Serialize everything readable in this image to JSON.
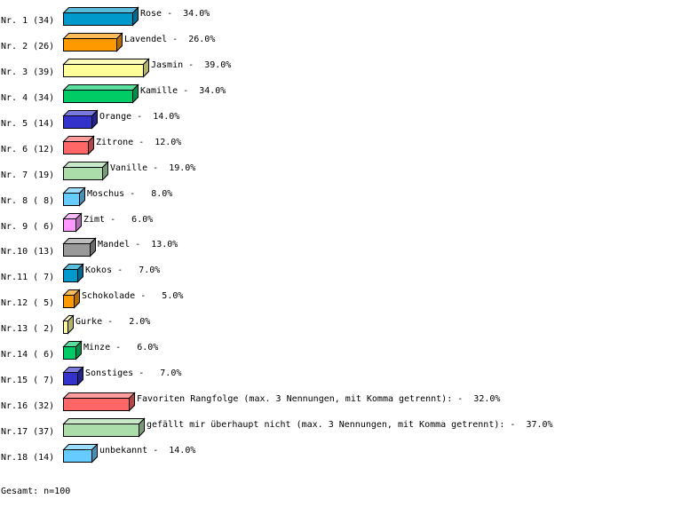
{
  "chart_data": {
    "type": "bar",
    "orientation": "horizontal",
    "style": "3d",
    "grid": false,
    "xlim": [
      0,
      100
    ],
    "rows": [
      {
        "label": "Nr. 1 (34)",
        "name": "Rose",
        "value": 34.0,
        "color": "#0099cc"
      },
      {
        "label": "Nr. 2 (26)",
        "name": "Lavendel",
        "value": 26.0,
        "color": "#ff9900"
      },
      {
        "label": "Nr. 3 (39)",
        "name": "Jasmin",
        "value": 39.0,
        "color": "#ffff99"
      },
      {
        "label": "Nr. 4 (34)",
        "name": "Kamille",
        "value": 34.0,
        "color": "#00cc66"
      },
      {
        "label": "Nr. 5 (14)",
        "name": "Orange",
        "value": 14.0,
        "color": "#3333cc"
      },
      {
        "label": "Nr. 6 (12)",
        "name": "Zitrone",
        "value": 12.0,
        "color": "#ff6666"
      },
      {
        "label": "Nr. 7 (19)",
        "name": "Vanille",
        "value": 19.0,
        "color": "#aaddaa"
      },
      {
        "label": "Nr. 8 ( 8)",
        "name": "Moschus",
        "value": 8.0,
        "color": "#66ccff"
      },
      {
        "label": "Nr. 9 ( 6)",
        "name": "Zimt",
        "value": 6.0,
        "color": "#ff99ff"
      },
      {
        "label": "Nr.10 (13)",
        "name": "Mandel",
        "value": 13.0,
        "color": "#999999"
      },
      {
        "label": "Nr.11 ( 7)",
        "name": "Kokos",
        "value": 7.0,
        "color": "#0099cc"
      },
      {
        "label": "Nr.12 ( 5)",
        "name": "Schokolade",
        "value": 5.0,
        "color": "#ff9900"
      },
      {
        "label": "Nr.13 ( 2)",
        "name": "Gurke",
        "value": 2.0,
        "color": "#ffff99"
      },
      {
        "label": "Nr.14 ( 6)",
        "name": "Minze",
        "value": 6.0,
        "color": "#00cc66"
      },
      {
        "label": "Nr.15 ( 7)",
        "name": "Sonstiges",
        "value": 7.0,
        "color": "#3333cc"
      },
      {
        "label": "Nr.16 (32)",
        "name": "Favoriten Rangfolge (max. 3 Nennungen, mit Komma getrennt):",
        "value": 32.0,
        "color": "#ff6666"
      },
      {
        "label": "Nr.17 (37)",
        "name": "gefällt mir überhaupt nicht (max. 3 Nennungen, mit Komma getrennt):",
        "value": 37.0,
        "color": "#aaddaa"
      },
      {
        "label": "Nr.18 (14)",
        "name": "unbekannt",
        "value": 14.0,
        "color": "#66ccff"
      }
    ],
    "footer": "Gesamt: n=100"
  }
}
